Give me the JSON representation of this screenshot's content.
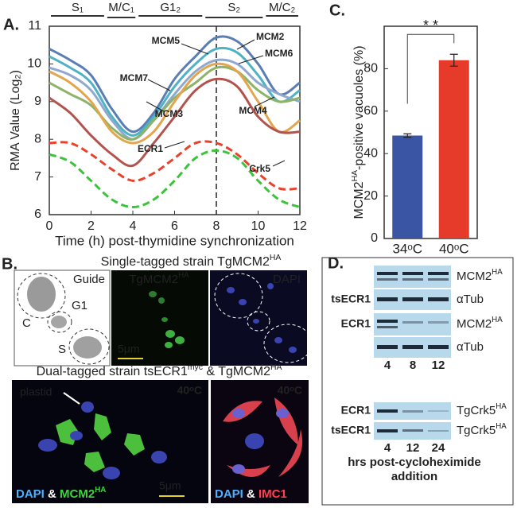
{
  "panel_labels": [
    "A.",
    "B.",
    "C.",
    "D."
  ],
  "chart_data": [
    {
      "type": "line",
      "x": [
        0,
        1,
        2,
        3,
        4,
        5,
        6,
        7,
        8,
        9,
        10,
        11,
        12
      ],
      "xlim": [
        0,
        12
      ],
      "xticks": [
        0,
        2,
        4,
        6,
        8,
        10,
        12
      ],
      "ylim": [
        6,
        11
      ],
      "yticks": [
        6,
        7,
        8,
        9,
        10,
        11
      ],
      "x_label": "Time (h) post-thymidine synchronization",
      "y_label": "RMA Value (Log₂)",
      "phases": [
        {
          "label": "S₁",
          "start": 0,
          "end": 2.7
        },
        {
          "label": "M/C₁",
          "start": 2.7,
          "end": 4.2
        },
        {
          "label": "G1₂",
          "start": 4.2,
          "end": 7.4
        },
        {
          "label": "S₂",
          "start": 7.4,
          "end": 10.3
        },
        {
          "label": "M/C₂",
          "start": 10.3,
          "end": 12
        }
      ],
      "marker_x": 8,
      "series": [
        {
          "name": "MCM2",
          "color": "#5a7db3",
          "values": [
            10.4,
            10.1,
            9.7,
            8.8,
            8.2,
            8.7,
            9.6,
            10.2,
            10.7,
            10.6,
            10.0,
            9.2,
            9.5
          ]
        },
        {
          "name": "MCM5",
          "color": "#4fb2c4",
          "values": [
            10.2,
            9.9,
            9.5,
            8.6,
            8.1,
            8.6,
            9.4,
            10.0,
            10.4,
            10.3,
            9.7,
            9.0,
            9.3
          ]
        },
        {
          "name": "MCM6",
          "color": "#8fa8cf",
          "values": [
            9.9,
            9.7,
            9.3,
            8.5,
            8.0,
            8.5,
            9.2,
            9.8,
            10.1,
            10.0,
            9.5,
            9.2,
            9.0
          ]
        },
        {
          "name": "MCM7",
          "color": "#8db36a",
          "values": [
            9.5,
            9.2,
            8.9,
            8.3,
            8.0,
            8.5,
            9.1,
            9.5,
            9.9,
            9.8,
            9.3,
            9.0,
            9.1
          ]
        },
        {
          "name": "MCM4",
          "color": "#e3a54d",
          "values": [
            9.8,
            9.5,
            9.0,
            8.2,
            7.9,
            8.2,
            9.0,
            9.7,
            10.0,
            9.8,
            9.0,
            8.2,
            8.5
          ]
        },
        {
          "name": "MCM3",
          "color": "#b3534e",
          "values": [
            9.1,
            8.7,
            8.1,
            7.6,
            7.3,
            7.9,
            8.6,
            9.3,
            9.6,
            9.4,
            8.6,
            8.2,
            8.2
          ]
        },
        {
          "name": "ECR1",
          "color": "#e8412c",
          "dashed": true,
          "values": [
            7.9,
            7.9,
            7.6,
            7.2,
            6.9,
            7.1,
            7.5,
            7.9,
            7.9,
            7.6,
            7.1,
            6.7,
            6.7
          ]
        },
        {
          "name": "Crk5",
          "color": "#3cc23c",
          "dashed": true,
          "values": [
            7.6,
            7.4,
            6.9,
            6.4,
            6.2,
            6.4,
            6.9,
            7.5,
            7.7,
            7.5,
            6.9,
            6.4,
            6.2
          ]
        }
      ]
    },
    {
      "type": "bar",
      "categories": [
        "34ᵒC",
        "40ᵒC"
      ],
      "values": [
        48.5,
        84
      ],
      "errors": [
        0.8,
        2.8
      ],
      "colors": [
        "#3b55a5",
        "#e63a2b"
      ],
      "ylim": [
        0,
        100
      ],
      "yticks": [
        0,
        20,
        40,
        60,
        80
      ],
      "y_label": [
        {
          "text": "MCM2",
          "sup": "HA"
        },
        {
          "text": "-positive vacuoles (%)"
        }
      ],
      "significance": "* *"
    }
  ],
  "panel_b": {
    "top_title": [
      {
        "text": "Single-tagged strain TgMCM2",
        "sup": "HA"
      }
    ],
    "guide": "Guide",
    "stages": [
      "C",
      "G1",
      "S"
    ],
    "green_label": [
      {
        "text": "TgMCM2",
        "sup": "HA"
      }
    ],
    "dapi_label": "DAPI",
    "scale": "5μm",
    "bottom_title": [
      {
        "text": "Dual-tagged strain tsECR1",
        "sup": "myc"
      },
      {
        "text": " & TgMCM2",
        "sup": "HA"
      }
    ],
    "plastid": "plastid",
    "temps": [
      "40ᵒC",
      "40ᵒC"
    ],
    "left_label": [
      {
        "text": "DAPI"
      },
      {
        "text": " & "
      },
      {
        "text": "MCM2",
        "sup": "HA"
      }
    ],
    "right_label": [
      {
        "text": "DAPI"
      },
      {
        "text": " & "
      },
      {
        "text": "IMC1"
      }
    ],
    "scale2": "5μm"
  },
  "panel_d": {
    "groups": [
      "tsECR1",
      "ECR1"
    ],
    "rows": [
      [
        {
          "text": "MCM2",
          "sup": "HA"
        }
      ],
      [
        {
          "text": "αTub"
        }
      ],
      [
        {
          "text": "MCM2",
          "sup": "HA"
        }
      ],
      [
        {
          "text": "αTub"
        }
      ]
    ],
    "times": [
      "4",
      "8",
      "12"
    ],
    "crk_groups": [
      "ECR1",
      "tsECR1"
    ],
    "crk_rows": [
      [
        {
          "text": "TgCrk5",
          "sup": "HA"
        }
      ],
      [
        {
          "text": "TgCrk5",
          "sup": "HA"
        }
      ]
    ],
    "crk_times": [
      "4",
      "12",
      "24"
    ],
    "caption": [
      "hrs post-cycloheximide",
      "addition"
    ]
  }
}
